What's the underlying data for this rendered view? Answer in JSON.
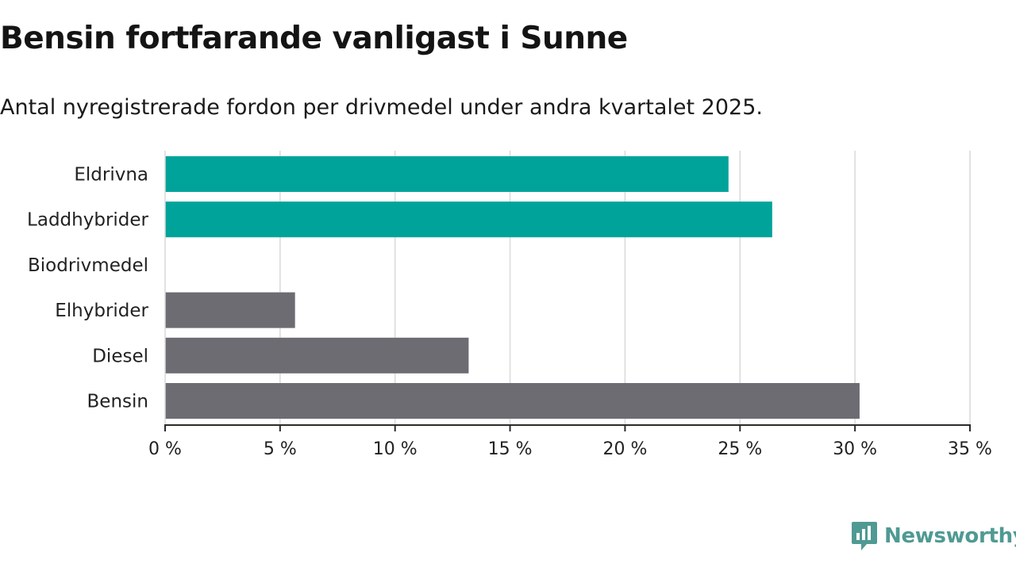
{
  "header": {
    "title": "Bensin fortfarande vanligast i Sunne",
    "subtitle": "Antal nyregistrerade fordon per drivmedel under andra kvartalet 2025."
  },
  "brand": {
    "name": "Newsworthy",
    "icon": "newsworthy-logo-icon",
    "color": "#4f9a93"
  },
  "colors": {
    "highlight": "#00a39a",
    "default": "#6d6c73",
    "grid": "#d9d9d9",
    "axis": "#2b2b2b"
  },
  "chart_data": {
    "type": "bar",
    "orientation": "horizontal",
    "categories": [
      "Eldrivna",
      "Laddhybrider",
      "Biodrivmedel",
      "Elhybrider",
      "Diesel",
      "Bensin"
    ],
    "values": [
      24.5,
      26.4,
      0,
      5.65,
      13.2,
      30.2
    ],
    "highlighted": [
      true,
      true,
      false,
      false,
      false,
      false
    ],
    "xlim": [
      0,
      35
    ],
    "xticks": [
      0,
      5,
      10,
      15,
      20,
      25,
      30,
      35
    ],
    "tick_labels": [
      "0 %",
      "5 %",
      "10 %",
      "15 %",
      "20 %",
      "25 %",
      "30 %",
      "35 %"
    ],
    "grid": true
  }
}
